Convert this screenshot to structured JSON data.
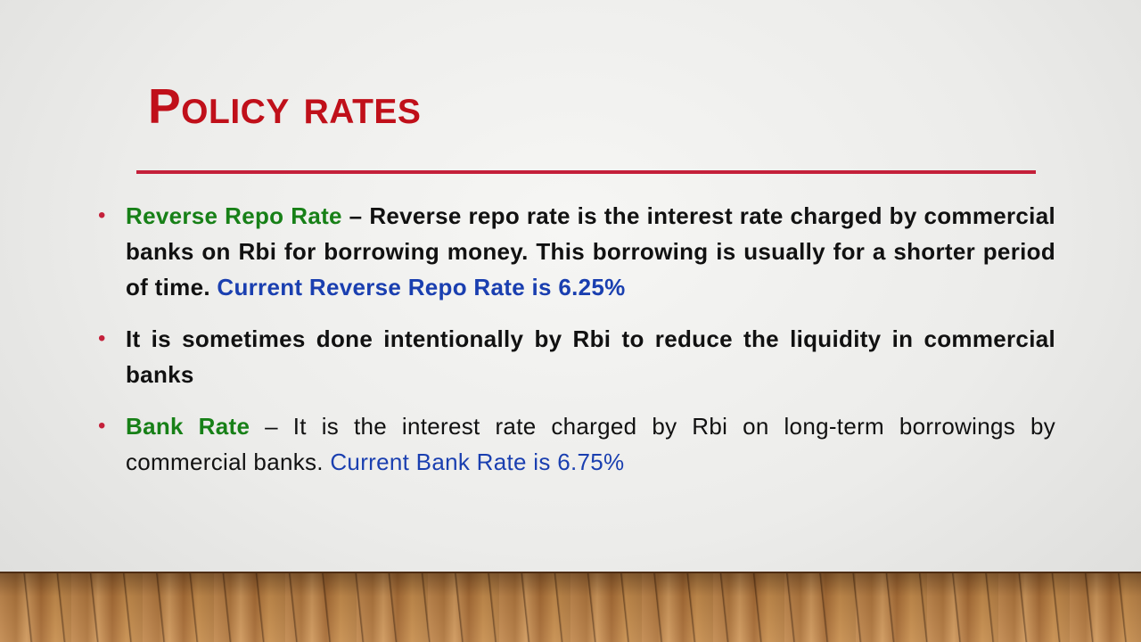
{
  "slide": {
    "title": "Policy rates",
    "bullets": [
      {
        "term": "Reverse Repo Rate",
        "separator": " – ",
        "text": "Reverse repo rate is the interest rate charged by commercial banks on Rbi for borrowing money. This borrowing is usually for a shorter period of time. ",
        "highlight": "Current Reverse Repo Rate is 6.25%"
      },
      {
        "text": "It is sometimes done intentionally by Rbi to reduce the liquidity in commercial banks"
      },
      {
        "term": "Bank Rate",
        "separator": " – ",
        "text": "It is the interest rate charged by Rbi on long-term borrowings by commercial banks. ",
        "highlight": "Current Bank Rate is 6.75%"
      }
    ],
    "bullet_glyph": "•"
  },
  "colors": {
    "title": "#c0101a",
    "rule": "#c4203a",
    "term": "#178017",
    "highlight": "#1a3fb0",
    "body_text": "#111111"
  }
}
